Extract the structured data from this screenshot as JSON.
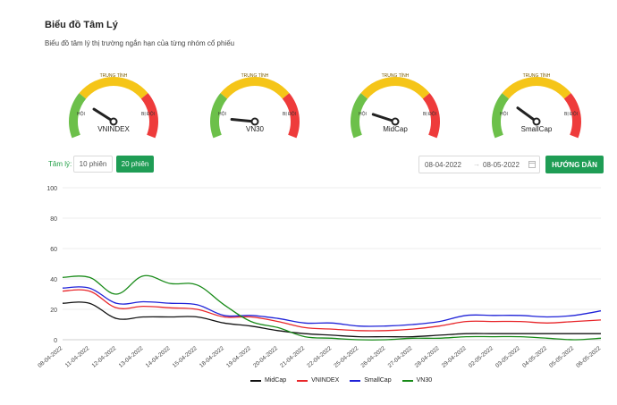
{
  "header": {
    "title": "Biểu đồ Tâm Lý",
    "subtitle": "Biểu đồ tâm lý thị trường ngắn hạn của từng nhóm cổ phiếu"
  },
  "gauges": [
    {
      "name": "VNINDEX",
      "mid_label": "TRUNG TÍNH",
      "low_label": "HỘI",
      "high_label": "BỊ ĐỘI",
      "value_fraction": 0.18
    },
    {
      "name": "VN30",
      "mid_label": "TRUNG TÍNH",
      "low_label": "HỘI",
      "high_label": "BỊ ĐỘI",
      "value_fraction": 0.03
    },
    {
      "name": "MidCap",
      "mid_label": "TRUNG TÍNH",
      "low_label": "HỘI",
      "high_label": "BỊ ĐỘI",
      "value_fraction": 0.1
    },
    {
      "name": "SmallCap",
      "mid_label": "TRUNG TÍNH",
      "low_label": "HỘI",
      "high_label": "BỊ ĐỘI",
      "value_fraction": 0.2
    }
  ],
  "filters": {
    "label": "Tâm lý:",
    "btn_10": "10 phiên",
    "btn_20": "20 phiên",
    "active": "20 phiên"
  },
  "daterange": {
    "start": "08-04-2022",
    "arrow": "→",
    "end": "08-05-2022"
  },
  "guide_button": "HƯỚNG DẪN",
  "colors": {
    "accent": "#1f9d55",
    "gauge_green": "#6cc04a",
    "gauge_yellow": "#f5c518",
    "gauge_red": "#ee3b3b"
  },
  "chart_data": {
    "type": "line",
    "ylim": [
      0,
      100
    ],
    "yticks": [
      0,
      20,
      40,
      60,
      80,
      100
    ],
    "categories": [
      "08-04-2022",
      "11-04-2022",
      "12-04-2022",
      "13-04-2022",
      "14-04-2022",
      "15-04-2022",
      "18-04-2022",
      "19-04-2022",
      "20-04-2022",
      "21-04-2022",
      "22-04-2022",
      "25-04-2022",
      "26-04-2022",
      "27-04-2022",
      "28-04-2022",
      "29-04-2022",
      "02-05-2022",
      "03-05-2022",
      "04-05-2022",
      "05-05-2022",
      "06-05-2022"
    ],
    "series": [
      {
        "name": "MidCap",
        "color": "#111111",
        "values": [
          24,
          24,
          14,
          15,
          15,
          15,
          11,
          9,
          6,
          4,
          3,
          2,
          2,
          2,
          3,
          4,
          4,
          4,
          4,
          4,
          4
        ]
      },
      {
        "name": "VNINDEX",
        "color": "#e8262a",
        "values": [
          32,
          32,
          21,
          22,
          21,
          20,
          15,
          15,
          12,
          8,
          7,
          6,
          6,
          7,
          9,
          12,
          12,
          12,
          11,
          12,
          13
        ]
      },
      {
        "name": "SmallCap",
        "color": "#1f22d8",
        "values": [
          34,
          34,
          24,
          25,
          24,
          23,
          16,
          16,
          14,
          11,
          11,
          9,
          9,
          10,
          12,
          16,
          16,
          16,
          15,
          16,
          19
        ]
      },
      {
        "name": "VN30",
        "color": "#178a17",
        "values": [
          41,
          41,
          30,
          42,
          37,
          36,
          23,
          12,
          8,
          2,
          1,
          0,
          0,
          1,
          1,
          2,
          2,
          2,
          1,
          0,
          1
        ]
      }
    ],
    "legend": "bottom"
  }
}
